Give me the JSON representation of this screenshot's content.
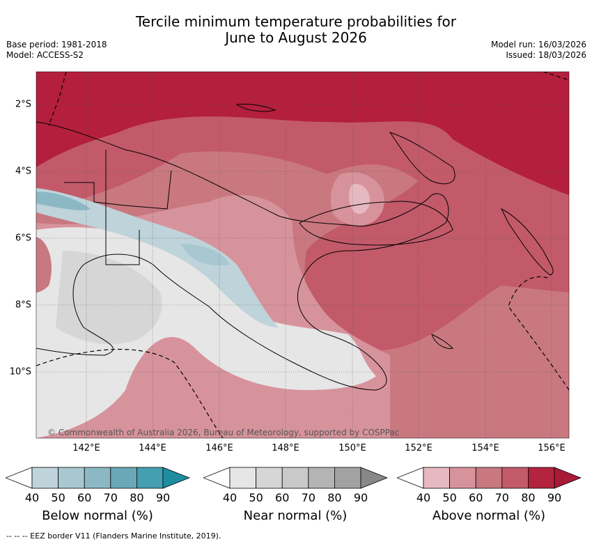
{
  "title_line1": "Tercile minimum temperature probabilities for",
  "title_line2": "June to August 2026",
  "meta_left": {
    "line1": "Base period: 1981-2018",
    "line2": "Model: ACCESS-S2"
  },
  "meta_right": {
    "line1": "Model run: 16/03/2026",
    "line2": "Issued: 18/03/2026"
  },
  "lat_labels": [
    "2°S",
    "4°S",
    "6°S",
    "8°S",
    "10°S"
  ],
  "lon_labels": [
    "142°E",
    "144°E",
    "146°E",
    "148°E",
    "150°E",
    "152°E",
    "154°E",
    "156°E"
  ],
  "copyright": "© Commonwealth of Australia 2026, Bureau of Meteorology, supported by COSPPac",
  "footer": "-- -- -- EEZ border V11 (Flanders Marine Institute, 2019).",
  "colorbars": [
    {
      "title": "Below normal (%)",
      "ticks": [
        "40",
        "50",
        "60",
        "70",
        "80",
        "90"
      ],
      "colors": [
        "#ffffff",
        "#bfd3da",
        "#a8c8d1",
        "#8cb8c5",
        "#6aa8b7",
        "#449fb0",
        "#1e8da0"
      ]
    },
    {
      "title": "Near normal (%)",
      "ticks": [
        "40",
        "50",
        "60",
        "70",
        "80",
        "90"
      ],
      "colors": [
        "#ffffff",
        "#e6e6e6",
        "#d6d6d6",
        "#c9c9c9",
        "#b4b4b4",
        "#a2a2a2",
        "#888888"
      ]
    },
    {
      "title": "Above normal (%)",
      "ticks": [
        "40",
        "50",
        "60",
        "70",
        "80",
        "90"
      ],
      "colors": [
        "#ffffff",
        "#e6b8c0",
        "#d7939c",
        "#c97880",
        "#c25a6a",
        "#b4233e",
        "#a81a36"
      ]
    }
  ]
}
